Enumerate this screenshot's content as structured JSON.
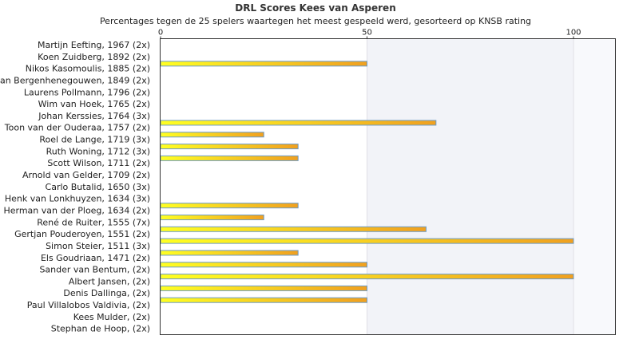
{
  "chart_data": {
    "type": "bar",
    "orientation": "horizontal",
    "title": "DRL Scores Kees van Asperen",
    "subtitle": "Percentages tegen de 25 spelers waartegen het meest gespeeld werd, gesorteerd op KNSB rating",
    "xlim": [
      0,
      110
    ],
    "xticks": [
      0,
      50,
      100
    ],
    "categories": [
      "Martijn Eefting, 1967 (2x)",
      "Koen Zuidberg, 1892 (2x)",
      "Nikos Kasomoulis, 1885 (2x)",
      "van Bergenhenegouwen, 1849 (2x)",
      "Laurens Pollmann, 1796 (2x)",
      "Wim van Hoek, 1765 (2x)",
      "Johan Kerssies, 1764 (3x)",
      "Toon van der Ouderaa, 1757 (2x)",
      "Roel de Lange, 1719 (3x)",
      "Ruth Woning, 1712 (3x)",
      "Scott Wilson, 1711 (2x)",
      "Arnold van Gelder, 1709 (2x)",
      "Carlo Butalid, 1650 (3x)",
      "Henk van Lonkhuyzen, 1634 (3x)",
      "Herman van der Ploeg, 1634 (2x)",
      "René de Ruiter, 1555 (7x)",
      "Gertjan Pouderoyen, 1551 (2x)",
      "Simon Steier, 1511 (3x)",
      "Els Goudriaan, 1471 (2x)",
      "Sander van Bentum,  (2x)",
      "Albert Jansen,  (2x)",
      "Denis Dallinga,  (2x)",
      "Paul Villalobos Valdivia,  (2x)",
      "Kees Mulder,  (2x)",
      "Stephan de Hoop,  (2x)"
    ],
    "values": [
      0,
      50,
      0,
      0,
      0,
      0,
      66.7,
      25,
      33.3,
      33.3,
      0,
      0,
      0,
      33.3,
      25,
      64.3,
      100,
      33.3,
      50,
      100,
      50,
      50,
      0,
      0,
      0
    ],
    "grid": true,
    "colors": {
      "bar_start": "#ffff22",
      "bar_end": "#f0a020",
      "bar_stroke": "#6b9bc8",
      "band_light": "#f2f3f8",
      "band_lighter": "#f8f9fc",
      "axis": "#333333"
    }
  }
}
